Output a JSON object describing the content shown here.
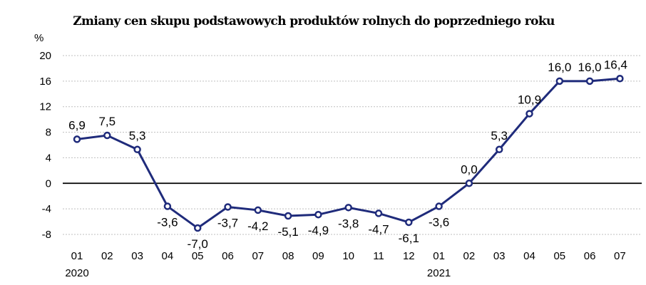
{
  "chart_data": {
    "type": "line",
    "title": "Zmiany cen skupu podstawowych produktów rolnych do poprzedniego roku",
    "ylabel": "%",
    "xlabel": "",
    "ylim": [
      -8,
      20
    ],
    "yticks": [
      "20",
      "16",
      "12",
      "8",
      "4",
      "0",
      "-4",
      "-8"
    ],
    "ytick_values": [
      20,
      16,
      12,
      8,
      4,
      0,
      -4,
      -8
    ],
    "categories": [
      "01",
      "02",
      "03",
      "04",
      "05",
      "06",
      "07",
      "08",
      "09",
      "10",
      "11",
      "12",
      "01",
      "02",
      "03",
      "04",
      "05",
      "06",
      "07"
    ],
    "year_labels": [
      {
        "index": 0,
        "text": "2020"
      },
      {
        "index": 12,
        "text": "2021"
      }
    ],
    "series": [
      {
        "values": [
          6.9,
          7.5,
          5.3,
          -3.6,
          -7.0,
          -3.7,
          -4.2,
          -5.1,
          -4.9,
          -3.8,
          -4.7,
          -6.1,
          -3.6,
          0.0,
          5.3,
          10.9,
          16.0,
          16.0,
          16.4
        ],
        "data_labels": [
          "6,9",
          "7,5",
          "5,3",
          "-3,6",
          "-7,0",
          "-3,7",
          "-4,2",
          "-5,1",
          "-4,9",
          "-3,8",
          "-4,7",
          "-6,1",
          "-3,6",
          "0,0",
          "5,3",
          "10,9",
          "16,0",
          "16,0",
          "16,4"
        ],
        "color": "#1f2b7b"
      }
    ],
    "grid": true,
    "zero_line": true,
    "legend": "none"
  }
}
